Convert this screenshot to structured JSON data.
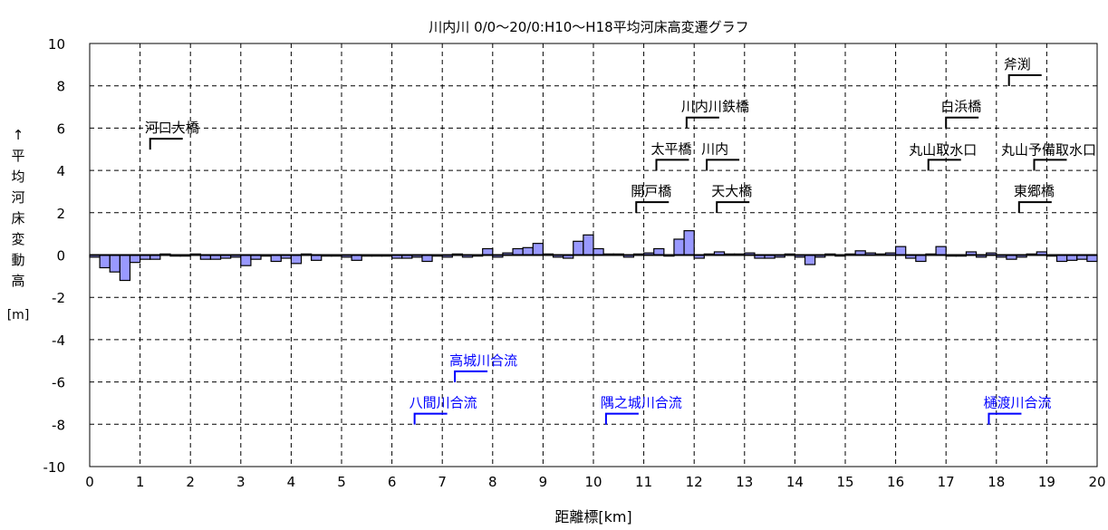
{
  "chart_data": {
    "type": "bar",
    "title": "川内川 0/0～20/0:H10～H18平均河床高変遷グラフ",
    "xlabel": "距離標[km]",
    "ylabel_chars": [
      "↑",
      "平",
      "均",
      "河",
      "床",
      "変",
      "動",
      "高"
    ],
    "ylabel_unit": "[m]",
    "xlim": [
      0,
      20
    ],
    "ylim": [
      -10,
      10
    ],
    "x_ticks": [
      "0",
      "1",
      "2",
      "3",
      "4",
      "5",
      "6",
      "7",
      "8",
      "9",
      "10",
      "11",
      "12",
      "13",
      "14",
      "15",
      "16",
      "17",
      "18",
      "19",
      "20"
    ],
    "y_ticks": [
      "10",
      "8",
      "6",
      "4",
      "2",
      "0",
      "-2",
      "-4",
      "-6",
      "-8",
      "-10"
    ],
    "grid": true,
    "bar_width_km": 0.2,
    "x": [
      0.1,
      0.3,
      0.5,
      0.7,
      0.9,
      1.1,
      1.3,
      1.5,
      1.7,
      1.9,
      2.1,
      2.3,
      2.5,
      2.7,
      2.9,
      3.1,
      3.3,
      3.5,
      3.7,
      3.9,
      4.1,
      4.3,
      4.5,
      4.7,
      4.9,
      5.1,
      5.3,
      5.5,
      5.7,
      5.9,
      6.1,
      6.3,
      6.5,
      6.7,
      6.9,
      7.1,
      7.3,
      7.5,
      7.7,
      7.9,
      8.1,
      8.3,
      8.5,
      8.7,
      8.9,
      9.1,
      9.3,
      9.5,
      9.7,
      9.9,
      10.1,
      10.3,
      10.5,
      10.7,
      10.9,
      11.1,
      11.3,
      11.5,
      11.7,
      11.9,
      12.1,
      12.3,
      12.5,
      12.7,
      12.9,
      13.1,
      13.3,
      13.5,
      13.7,
      13.9,
      14.1,
      14.3,
      14.5,
      14.7,
      14.9,
      15.1,
      15.3,
      15.5,
      15.7,
      15.9,
      16.1,
      16.3,
      16.5,
      16.7,
      16.9,
      17.1,
      17.3,
      17.5,
      17.7,
      17.9,
      18.1,
      18.3,
      18.5,
      18.7,
      18.9,
      19.1,
      19.3,
      19.5,
      19.7,
      19.9
    ],
    "values": [
      -0.1,
      -0.6,
      -0.8,
      -1.2,
      -0.35,
      -0.2,
      -0.2,
      0.05,
      -0.05,
      -0.05,
      0.05,
      -0.2,
      -0.2,
      -0.15,
      -0.1,
      -0.5,
      -0.2,
      -0.05,
      -0.3,
      -0.15,
      -0.4,
      0.05,
      -0.25,
      -0.05,
      -0.05,
      -0.1,
      -0.25,
      -0.05,
      -0.05,
      -0.05,
      -0.15,
      -0.15,
      -0.1,
      -0.3,
      -0.05,
      -0.1,
      0.05,
      -0.1,
      -0.05,
      0.3,
      -0.1,
      0.1,
      0.3,
      0.35,
      0.55,
      0.05,
      -0.1,
      -0.15,
      0.65,
      0.95,
      0.3,
      0.05,
      0.05,
      -0.1,
      0.05,
      0.1,
      0.3,
      -0.05,
      0.75,
      1.15,
      -0.15,
      0.05,
      0.15,
      0.05,
      0.05,
      0.1,
      -0.15,
      -0.15,
      -0.1,
      0.05,
      -0.1,
      -0.45,
      -0.1,
      0.05,
      -0.05,
      0.05,
      0.2,
      0.1,
      0.05,
      0.1,
      0.4,
      -0.15,
      -0.3,
      0.05,
      0.4,
      -0.05,
      -0.05,
      0.15,
      -0.1,
      0.1,
      -0.1,
      -0.2,
      -0.1,
      0.05,
      0.15,
      -0.05,
      -0.3,
      -0.25,
      -0.2,
      -0.3
    ],
    "bar_color": "#9999ff",
    "annotations": [
      {
        "text": "河口大橋",
        "x": 1.2,
        "y": 5.5,
        "color": "#000000",
        "pos": "above"
      },
      {
        "text": "川内川鉄橋",
        "x": 11.85,
        "y": 6.5,
        "color": "#000000",
        "pos": "above"
      },
      {
        "text": "太平橋",
        "x": 11.25,
        "y": 4.5,
        "color": "#000000",
        "pos": "above"
      },
      {
        "text": "川内",
        "x": 12.25,
        "y": 4.5,
        "color": "#000000",
        "pos": "above"
      },
      {
        "text": "開戸橋",
        "x": 10.85,
        "y": 2.5,
        "color": "#000000",
        "pos": "above"
      },
      {
        "text": "天大橋",
        "x": 12.45,
        "y": 2.5,
        "color": "#000000",
        "pos": "above"
      },
      {
        "text": "丸山取水口",
        "x": 16.65,
        "y": 4.5,
        "color": "#000000",
        "pos": "left"
      },
      {
        "text": "白浜橋",
        "x": 17.0,
        "y": 6.5,
        "color": "#000000",
        "pos": "above"
      },
      {
        "text": "丸山予備取水口",
        "x": 18.75,
        "y": 4.5,
        "color": "#000000",
        "pos": "left"
      },
      {
        "text": "東郷橋",
        "x": 18.45,
        "y": 2.5,
        "color": "#000000",
        "pos": "above"
      },
      {
        "text": "斧渕",
        "x": 18.25,
        "y": 8.5,
        "color": "#000000",
        "pos": "above"
      },
      {
        "text": "高城川合流",
        "x": 7.25,
        "y": -5.5,
        "color": "#0000ff",
        "pos": "above"
      },
      {
        "text": "八間川合流",
        "x": 6.45,
        "y": -7.5,
        "color": "#0000ff",
        "pos": "above"
      },
      {
        "text": "隅之城川合流",
        "x": 10.25,
        "y": -7.5,
        "color": "#0000ff",
        "pos": "above"
      },
      {
        "text": "樋渡川合流",
        "x": 17.85,
        "y": -7.5,
        "color": "#0000ff",
        "pos": "above"
      }
    ]
  }
}
